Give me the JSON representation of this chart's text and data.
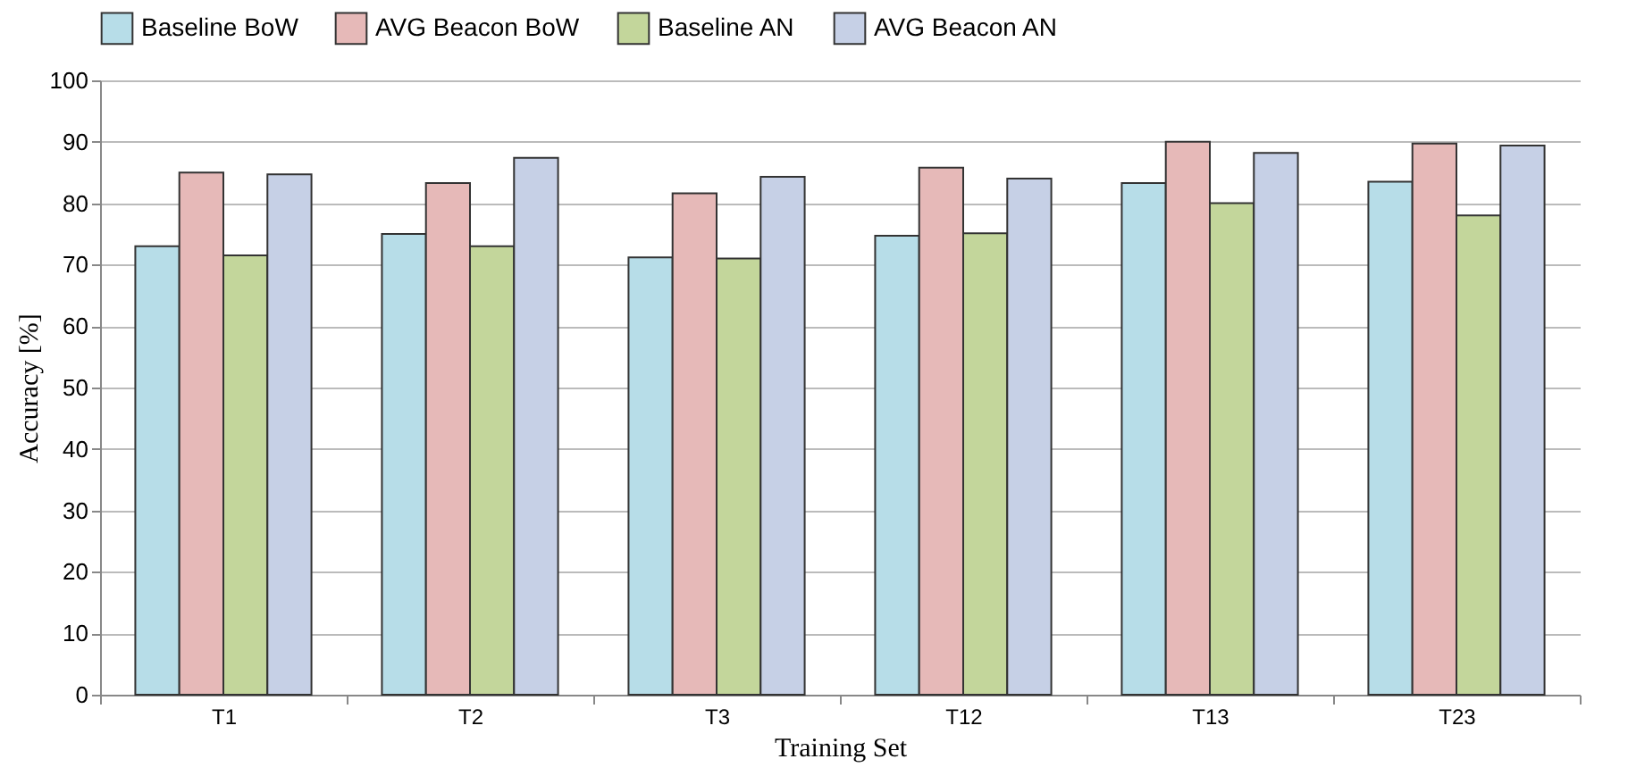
{
  "chart_data": {
    "type": "bar",
    "xlabel": "Training Set",
    "ylabel": "Accuracy [%]",
    "categories": [
      "T1",
      "T2",
      "T3",
      "T12",
      "T13",
      "T23"
    ],
    "series": [
      {
        "name": "Baseline BoW",
        "color": "#b7dde8",
        "values": [
          73,
          75,
          71.2,
          74.7,
          83.3,
          83.5
        ]
      },
      {
        "name": "AVG Beacon BoW",
        "color": "#e6b9b8",
        "values": [
          85,
          83.3,
          81.6,
          85.8,
          90,
          89.7
        ]
      },
      {
        "name": "Baseline AN",
        "color": "#c3d69b",
        "values": [
          71.5,
          73,
          71,
          75.1,
          80,
          78
        ]
      },
      {
        "name": "AVG Beacon AN",
        "color": "#c6d0e6",
        "values": [
          84.7,
          87.4,
          84.3,
          84,
          88.2,
          89.4
        ]
      }
    ],
    "ylim": [
      0,
      100
    ],
    "yticks": [
      0,
      10,
      20,
      30,
      40,
      50,
      60,
      70,
      80,
      90,
      100
    ],
    "grid": "y",
    "legend": "top"
  }
}
